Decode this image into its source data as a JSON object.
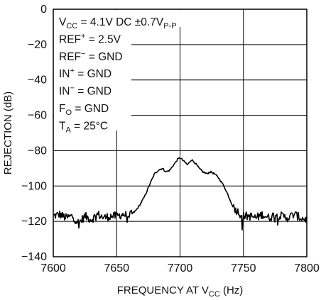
{
  "chart_data": {
    "type": "line",
    "xlabel": {
      "main": "FREQUENCY AT V",
      "sub": "CC",
      "tail": " (Hz)"
    },
    "ylabel": "REJECTION (dB)",
    "xlim": [
      7600,
      7800
    ],
    "ylim": [
      -140,
      0
    ],
    "xticks": [
      7600,
      7650,
      7700,
      7750,
      7800
    ],
    "yticks": [
      0,
      -20,
      -40,
      -60,
      -80,
      -100,
      -120,
      -140
    ],
    "x_tick_labels": [
      "7600",
      "7650",
      "7700",
      "7750",
      "7800"
    ],
    "y_tick_labels": [
      "0",
      "−20",
      "−40",
      "−60",
      "−80",
      "−100",
      "−120",
      "−140"
    ],
    "grid": true,
    "annotations": [
      {
        "main": "V",
        "sub": "CC",
        "tail": " = 4.1V DC ±0.7V",
        "sub2": "P-P"
      },
      {
        "main": "REF",
        "sup": "+",
        "tail": " = 2.5V"
      },
      {
        "main": "REF",
        "sup": "−",
        "tail": " = GND"
      },
      {
        "main": "IN",
        "sup": "+",
        "tail": " = GND"
      },
      {
        "main": "IN",
        "sup": "−",
        "tail": " = GND"
      },
      {
        "main": "F",
        "sub": "O",
        "tail": " = GND"
      },
      {
        "main": "T",
        "sub": "A",
        "tail": " = 25°C"
      }
    ],
    "series": [
      {
        "x": [
          7600,
          7605,
          7610,
          7615,
          7620,
          7625,
          7630,
          7635,
          7640,
          7645,
          7650,
          7655,
          7660,
          7665,
          7668,
          7672,
          7675,
          7678,
          7680,
          7683,
          7686,
          7689,
          7692,
          7695,
          7698,
          7700,
          7703,
          7706,
          7709,
          7712,
          7715,
          7718,
          7721,
          7724,
          7727,
          7730,
          7733,
          7736,
          7739,
          7742,
          7745,
          7748,
          7750,
          7755,
          7760,
          7765,
          7770,
          7775,
          7780,
          7785,
          7790,
          7795,
          7800
        ],
        "y": [
          -117,
          -116,
          -118,
          -117,
          -121,
          -117,
          -119,
          -116,
          -118,
          -117,
          -117,
          -116,
          -117,
          -114,
          -111,
          -106,
          -101,
          -96,
          -93,
          -91,
          -90,
          -92,
          -91,
          -88,
          -85,
          -84,
          -86,
          -88,
          -85,
          -87,
          -90,
          -92,
          -93,
          -92,
          -93,
          -95,
          -98,
          -102,
          -107,
          -112,
          -114,
          -116,
          -117,
          -117,
          -118,
          -116,
          -118,
          -116,
          -117,
          -118,
          -116,
          -118,
          -119
        ]
      }
    ]
  }
}
